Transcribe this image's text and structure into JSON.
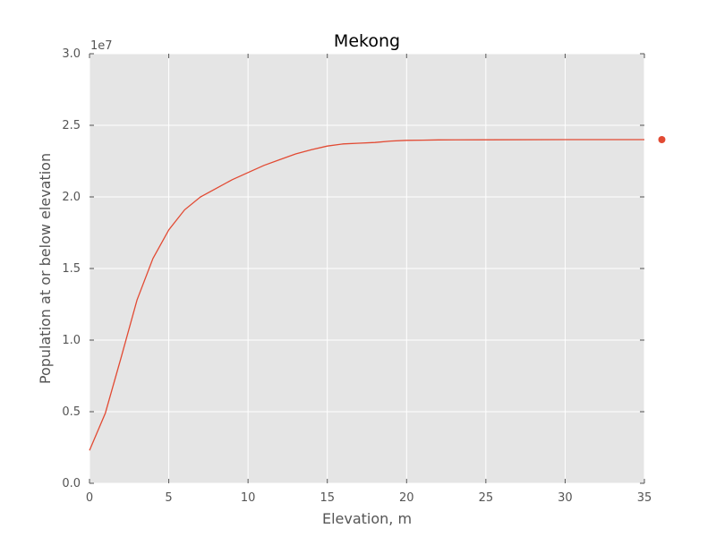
{
  "chart_data": {
    "type": "line",
    "title": "Mekong",
    "xlabel": "Elevation, m",
    "ylabel": "Population at or below elevation",
    "y_offset_label": "1e7",
    "xlim": [
      0,
      35
    ],
    "ylim": [
      0,
      3.0
    ],
    "y_scale_multiplier": 10000000,
    "xticks": [
      0,
      5,
      10,
      15,
      20,
      25,
      30,
      35
    ],
    "xtick_labels": [
      "0",
      "5",
      "10",
      "15",
      "20",
      "25",
      "30",
      "35"
    ],
    "yticks": [
      0.0,
      0.5,
      1.0,
      1.5,
      2.0,
      2.5,
      3.0
    ],
    "ytick_labels": [
      "0.0",
      "0.5",
      "1.0",
      "1.5",
      "2.0",
      "2.5",
      "3.0"
    ],
    "grid": true,
    "series": [
      {
        "color": "#e24a33",
        "x": [
          0,
          1,
          2,
          3,
          4,
          5,
          6,
          7,
          8,
          9,
          10,
          11,
          12,
          13,
          14,
          15,
          16,
          17,
          18,
          19,
          20,
          21,
          22,
          25,
          30,
          35
        ],
        "y": [
          0.23,
          0.49,
          0.88,
          1.28,
          1.57,
          1.77,
          1.91,
          2.0,
          2.06,
          2.12,
          2.17,
          2.22,
          2.26,
          2.3,
          2.33,
          2.355,
          2.37,
          2.375,
          2.38,
          2.39,
          2.395,
          2.396,
          2.398,
          2.399,
          2.4,
          2.4
        ]
      }
    ],
    "outlier_point": {
      "x": 36.1,
      "y": 2.4,
      "color": "#e24a33"
    },
    "colors": {
      "plot_background": "#e5e5e5",
      "grid": "#ffffff",
      "line": "#e24a33"
    }
  }
}
